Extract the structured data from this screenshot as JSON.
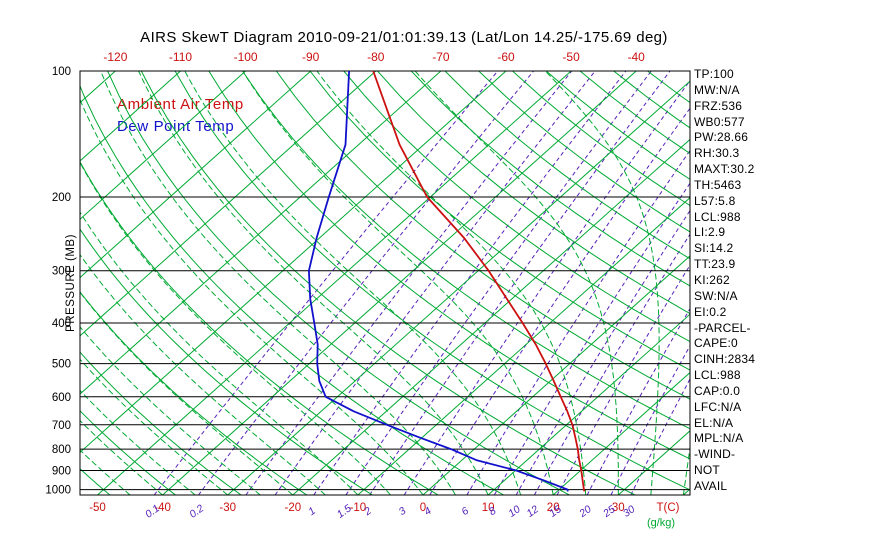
{
  "chart_data": {
    "type": "line",
    "title": "AIRS SkewT Diagram 2010-09-21/01:01:39.13 (Lat/Lon 14.25/-175.69 deg)",
    "xlabel": "T(C)",
    "ylabel": "PRESSURE (MB)",
    "mixing_ratio_unit": "(g/kg)",
    "legend_position": "top-left-inside",
    "grid": true,
    "y_axis": {
      "scale": "log",
      "unit": "mb",
      "range": [
        100,
        1030
      ],
      "ticks": [
        100,
        200,
        300,
        400,
        500,
        600,
        700,
        800,
        900,
        1000
      ]
    },
    "x_axis": {
      "unit": "deg C",
      "top_tick_temps": [
        -120,
        -110,
        -100,
        -90,
        -80,
        -70,
        -60,
        -50,
        -40
      ],
      "bottom_tick_temps": [
        -50,
        -40,
        -30,
        -20,
        -10,
        0,
        10,
        20,
        30
      ]
    },
    "isotherms_c": {
      "min": -120,
      "max": 40,
      "step": 10
    },
    "dry_adiabats_c": {
      "min": -50,
      "max": 180,
      "step": 10
    },
    "moist_adiabats_c": {
      "min": -45,
      "max": 40,
      "step": 5
    },
    "mixing_ratio_lines_gkg": [
      0.1,
      0.2,
      0.4,
      0.6,
      1,
      1.5,
      2,
      3,
      4,
      6,
      8,
      10,
      12,
      15,
      20,
      25,
      30
    ],
    "mixing_ratio_labels_gkg": [
      0.1,
      0.2,
      1,
      1.5,
      2,
      3,
      4,
      6,
      8,
      10,
      12,
      15,
      20,
      25,
      30
    ],
    "series": [
      {
        "name": "Ambient Air Temp",
        "color": "#cc1111",
        "points": [
          [
            1010,
            24.2
          ],
          [
            1000,
            23.8
          ],
          [
            950,
            22.0
          ],
          [
            900,
            20.1
          ],
          [
            850,
            18.0
          ],
          [
            800,
            15.9
          ],
          [
            750,
            13.5
          ],
          [
            700,
            10.9
          ],
          [
            650,
            7.8
          ],
          [
            600,
            4.3
          ],
          [
            550,
            0.5
          ],
          [
            500,
            -3.7
          ],
          [
            450,
            -8.5
          ],
          [
            400,
            -14.2
          ],
          [
            350,
            -20.8
          ],
          [
            300,
            -28.4
          ],
          [
            250,
            -37.9
          ],
          [
            200,
            -50.5
          ],
          [
            150,
            -63.7
          ],
          [
            100,
            -80.4
          ]
        ]
      },
      {
        "name": "Dew Point Temp",
        "color": "#1111cc",
        "points": [
          [
            1010,
            21.6
          ],
          [
            1000,
            21.3
          ],
          [
            950,
            16.0
          ],
          [
            900,
            10.1
          ],
          [
            850,
            2.2
          ],
          [
            800,
            -3.6
          ],
          [
            750,
            -10.5
          ],
          [
            700,
            -17.6
          ],
          [
            650,
            -25.0
          ],
          [
            600,
            -31.8
          ],
          [
            550,
            -35.5
          ],
          [
            500,
            -38.8
          ],
          [
            450,
            -42.0
          ],
          [
            400,
            -46.2
          ],
          [
            350,
            -51.0
          ],
          [
            300,
            -56.0
          ],
          [
            250,
            -60.5
          ],
          [
            200,
            -65.6
          ],
          [
            150,
            -72.0
          ],
          [
            100,
            -84.1
          ]
        ]
      }
    ]
  },
  "legend": {
    "ambient": "Ambient Air Temp",
    "dew_point": "Dew Point Temp"
  },
  "stats_panel": {
    "lines": [
      "TP:100",
      "MW:N/A",
      "FRZ:536",
      "WB0:577",
      "PW:28.66",
      "RH:30.3",
      "MAXT:30.2",
      "TH:5463",
      "L57:5.8",
      "LCL:988",
      "LI:2.9",
      "SI:14.2",
      "TT:23.9",
      "KI:262",
      "SW:N/A",
      "EI:0.2",
      "-PARCEL-",
      "CAPE:0",
      "CINH:2834",
      "LCL:988",
      "CAP:0.0",
      "LFC:N/A",
      "EL:N/A",
      "MPL:N/A",
      "-WIND-",
      "NOT",
      "AVAIL"
    ]
  },
  "colors": {
    "trace_red": "#cc1111",
    "trace_blue": "#1111cc",
    "line_green": "#00aa33",
    "line_purple": "#5522bb",
    "frame_black": "#000000"
  }
}
